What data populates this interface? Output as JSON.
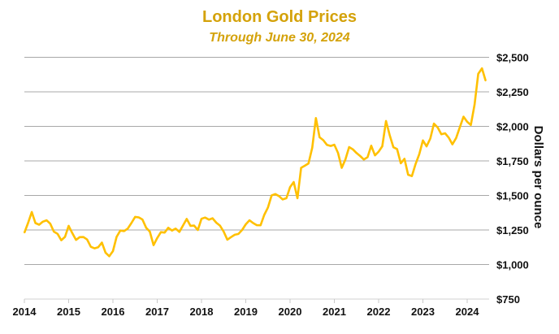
{
  "chart_data": {
    "type": "line",
    "title": "London Gold Prices",
    "subtitle": "Through June 30, 2024",
    "xlabel": "",
    "ylabel": "Dollars per ounce",
    "ylim": [
      750,
      2500
    ],
    "yticks": [
      750,
      1000,
      1250,
      1500,
      1750,
      2000,
      2250,
      2500
    ],
    "ytick_labels": [
      "$750",
      "$1,000",
      "$1,250",
      "$1,500",
      "$1,750",
      "$2,000",
      "$2,250",
      "$2,500"
    ],
    "xticks": [
      "2014",
      "2015",
      "2016",
      "2017",
      "2018",
      "2019",
      "2020",
      "2021",
      "2022",
      "2023",
      "2024"
    ],
    "grid": "horizontal",
    "y_axis_side": "right",
    "line_color": "#FFC000",
    "title_color": "#D4A20A",
    "x": [
      "2014-01",
      "2014-02",
      "2014-03",
      "2014-04",
      "2014-05",
      "2014-06",
      "2014-07",
      "2014-08",
      "2014-09",
      "2014-10",
      "2014-11",
      "2014-12",
      "2015-01",
      "2015-02",
      "2015-03",
      "2015-04",
      "2015-05",
      "2015-06",
      "2015-07",
      "2015-08",
      "2015-09",
      "2015-10",
      "2015-11",
      "2015-12",
      "2016-01",
      "2016-02",
      "2016-03",
      "2016-04",
      "2016-05",
      "2016-06",
      "2016-07",
      "2016-08",
      "2016-09",
      "2016-10",
      "2016-11",
      "2016-12",
      "2017-01",
      "2017-02",
      "2017-03",
      "2017-04",
      "2017-05",
      "2017-06",
      "2017-07",
      "2017-08",
      "2017-09",
      "2017-10",
      "2017-11",
      "2017-12",
      "2018-01",
      "2018-02",
      "2018-03",
      "2018-04",
      "2018-05",
      "2018-06",
      "2018-07",
      "2018-08",
      "2018-09",
      "2018-10",
      "2018-11",
      "2018-12",
      "2019-01",
      "2019-02",
      "2019-03",
      "2019-04",
      "2019-05",
      "2019-06",
      "2019-07",
      "2019-08",
      "2019-09",
      "2019-10",
      "2019-11",
      "2019-12",
      "2020-01",
      "2020-02",
      "2020-03",
      "2020-04",
      "2020-05",
      "2020-06",
      "2020-07",
      "2020-08",
      "2020-09",
      "2020-10",
      "2020-11",
      "2020-12",
      "2021-01",
      "2021-02",
      "2021-03",
      "2021-04",
      "2021-05",
      "2021-06",
      "2021-07",
      "2021-08",
      "2021-09",
      "2021-10",
      "2021-11",
      "2021-12",
      "2022-01",
      "2022-02",
      "2022-03",
      "2022-04",
      "2022-05",
      "2022-06",
      "2022-07",
      "2022-08",
      "2022-09",
      "2022-10",
      "2022-11",
      "2022-12",
      "2023-01",
      "2023-02",
      "2023-03",
      "2023-04",
      "2023-05",
      "2023-06",
      "2023-07",
      "2023-08",
      "2023-09",
      "2023-10",
      "2023-11",
      "2023-12",
      "2024-01",
      "2024-02",
      "2024-03",
      "2024-04",
      "2024-05",
      "2024-06"
    ],
    "values": [
      1230,
      1300,
      1380,
      1300,
      1288,
      1310,
      1320,
      1296,
      1238,
      1222,
      1176,
      1200,
      1280,
      1227,
      1178,
      1198,
      1199,
      1181,
      1128,
      1117,
      1125,
      1159,
      1086,
      1060,
      1097,
      1200,
      1246,
      1242,
      1260,
      1300,
      1345,
      1341,
      1326,
      1266,
      1238,
      1140,
      1192,
      1234,
      1231,
      1266,
      1246,
      1260,
      1236,
      1283,
      1330,
      1280,
      1282,
      1250,
      1331,
      1340,
      1325,
      1335,
      1303,
      1282,
      1238,
      1180,
      1198,
      1215,
      1221,
      1250,
      1291,
      1320,
      1300,
      1285,
      1284,
      1359,
      1413,
      1500,
      1510,
      1495,
      1471,
      1480,
      1560,
      1597,
      1480,
      1700,
      1715,
      1732,
      1846,
      2060,
      1921,
      1900,
      1866,
      1858,
      1867,
      1808,
      1700,
      1760,
      1850,
      1834,
      1807,
      1785,
      1760,
      1777,
      1860,
      1790,
      1817,
      1856,
      2039,
      1937,
      1849,
      1836,
      1733,
      1765,
      1650,
      1640,
      1726,
      1798,
      1898,
      1855,
      1912,
      2020,
      1992,
      1943,
      1950,
      1918,
      1870,
      1916,
      1993,
      2070,
      2033,
      2010,
      2158,
      2380,
      2420,
      2330
    ]
  }
}
